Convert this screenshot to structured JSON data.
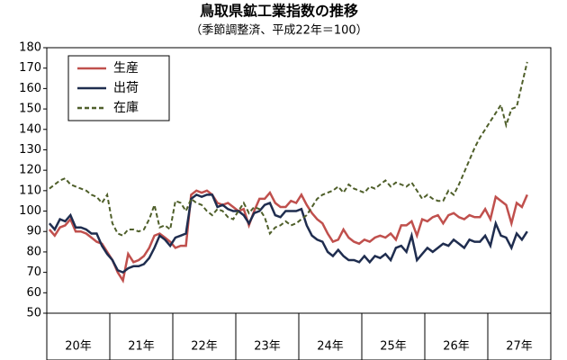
{
  "chart_data": {
    "type": "line",
    "title": "鳥取県鉱工業指数の推移",
    "subtitle": "（季節調整済、平成22年＝100）",
    "categories": [
      null,
      null,
      null,
      null,
      null,
      null,
      "20年",
      null,
      null,
      null,
      null,
      null,
      null,
      null,
      null,
      null,
      null,
      null,
      "21年",
      null,
      null,
      null,
      null,
      null,
      null,
      null,
      null,
      null,
      null,
      null,
      "22年",
      null,
      null,
      null,
      null,
      null,
      null,
      null,
      null,
      null,
      null,
      null,
      "23年",
      null,
      null,
      null,
      null,
      null,
      null,
      null,
      null,
      null,
      null,
      null,
      "24年",
      null,
      null,
      null,
      null,
      null,
      null,
      null,
      null,
      null,
      null,
      null,
      "25年",
      null,
      null,
      null,
      null,
      null,
      null,
      null,
      null,
      null,
      null,
      null,
      "26年",
      null,
      null,
      null,
      null,
      null,
      null,
      null,
      null,
      null,
      null,
      null,
      "27年",
      null,
      null,
      null,
      null,
      null
    ],
    "series": [
      {
        "name": "生産",
        "color": "#c0504d",
        "dash": false,
        "values": [
          91,
          88,
          92,
          93,
          96,
          90,
          90,
          89,
          87,
          85,
          84,
          80,
          76,
          70,
          66,
          79,
          75,
          76,
          78,
          82,
          88,
          89,
          87,
          85,
          82,
          83,
          83,
          108,
          110,
          109,
          110,
          108,
          104,
          103,
          104,
          102,
          100,
          101,
          93,
          100,
          106,
          106,
          109,
          104,
          102,
          102,
          105,
          104,
          108,
          103,
          99,
          96,
          94,
          89,
          85,
          86,
          91,
          87,
          85,
          84,
          86,
          85,
          87,
          88,
          87,
          89,
          86,
          93,
          93,
          95,
          88,
          96,
          95,
          97,
          98,
          94,
          98,
          99,
          97,
          96,
          98,
          97,
          97,
          101,
          96,
          107,
          105,
          103,
          94,
          104,
          102,
          108,
          null,
          null,
          null,
          null
        ]
      },
      {
        "name": "出荷",
        "color": "#1f2d4f",
        "dash": false,
        "values": [
          94,
          91,
          96,
          95,
          98,
          92,
          92,
          91,
          89,
          89,
          83,
          79,
          76,
          71,
          70,
          72,
          73,
          73,
          74,
          77,
          82,
          88,
          86,
          83,
          87,
          88,
          89,
          106,
          108,
          107,
          108,
          108,
          102,
          103,
          101,
          100,
          100,
          98,
          94,
          99,
          100,
          103,
          104,
          98,
          97,
          100,
          100,
          100,
          101,
          93,
          88,
          86,
          85,
          80,
          78,
          81,
          78,
          76,
          76,
          75,
          78,
          75,
          78,
          77,
          79,
          76,
          82,
          83,
          80,
          88,
          76,
          79,
          82,
          80,
          82,
          84,
          83,
          86,
          84,
          82,
          86,
          85,
          85,
          88,
          83,
          94,
          88,
          87,
          82,
          89,
          86,
          90,
          null,
          null,
          null,
          null
        ]
      },
      {
        "name": "在庫",
        "color": "#4f5f2a",
        "dash": true,
        "values": [
          111,
          113,
          115,
          116,
          113,
          112,
          111,
          110,
          108,
          107,
          104,
          108,
          94,
          89,
          88,
          91,
          91,
          90,
          91,
          96,
          103,
          92,
          93,
          91,
          105,
          104,
          100,
          106,
          104,
          103,
          100,
          98,
          101,
          100,
          97,
          96,
          100,
          104,
          99,
          102,
          101,
          97,
          89,
          92,
          93,
          95,
          93,
          94,
          96,
          98,
          102,
          106,
          108,
          109,
          110,
          112,
          109,
          113,
          111,
          110,
          109,
          112,
          111,
          113,
          115,
          112,
          114,
          113,
          112,
          114,
          110,
          106,
          108,
          106,
          105,
          105,
          110,
          108,
          113,
          119,
          125,
          131,
          136,
          140,
          144,
          148,
          152,
          142,
          150,
          151,
          162,
          173,
          null,
          null,
          null,
          null
        ]
      }
    ],
    "ylim": [
      50,
      180
    ],
    "yticks": [
      50,
      60,
      70,
      80,
      90,
      100,
      110,
      120,
      130,
      140,
      150,
      160,
      170,
      180
    ],
    "grid": false,
    "legend": "top-left"
  }
}
